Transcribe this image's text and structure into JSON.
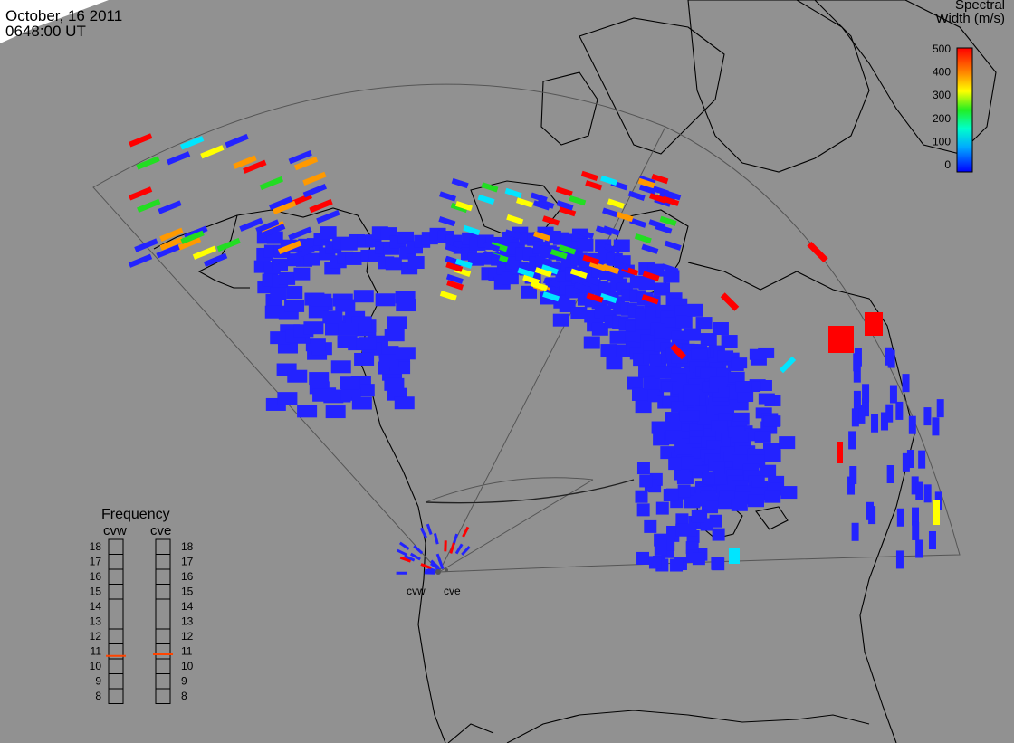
{
  "header": {
    "date": "October, 16 2011",
    "time": "0648:00 UT"
  },
  "colorbar": {
    "title_line1": "Spectral",
    "title_line2": "Width (m/s)",
    "ticks": [
      "500",
      "400",
      "300",
      "200",
      "100",
      "0"
    ],
    "stops": [
      "#ff0000",
      "#ff7f00",
      "#ffff00",
      "#00ff00",
      "#00ffff",
      "#0000ff"
    ]
  },
  "frequency": {
    "title": "Frequency",
    "radars": [
      "cvw",
      "cve"
    ],
    "ticks": [
      "18",
      "17",
      "16",
      "15",
      "14",
      "13",
      "12",
      "11",
      "10",
      "9",
      "8"
    ],
    "cvw_mhz": 10.7,
    "cve_mhz": 10.8
  },
  "radar_sites": [
    {
      "code": "cvw"
    },
    {
      "code": "cve"
    }
  ],
  "scatter_colors": {
    "low": "#2323ff",
    "cyan": "#00e5ff",
    "green": "#22dd22",
    "yellow": "#ffff00",
    "orange": "#ff9900",
    "red": "#ff0000"
  }
}
